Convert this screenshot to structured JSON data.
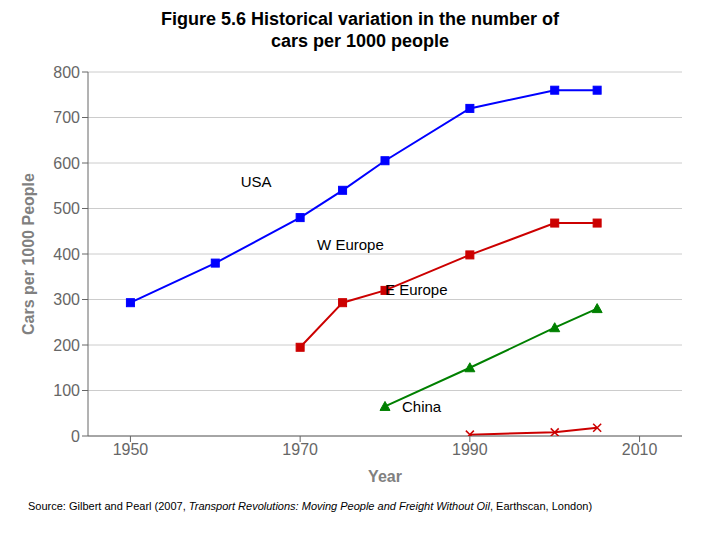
{
  "chart_data": {
    "type": "line",
    "title": "Figure 5.6 Historical variation in the number of\ncars per 1000 people",
    "x_label": "Year",
    "y_label": "Cars per 1000 People",
    "xlim": [
      1945,
      2015
    ],
    "ylim": [
      0,
      800
    ],
    "xticks": [
      1950,
      1970,
      1990,
      2010
    ],
    "yticks": [
      0,
      100,
      200,
      300,
      400,
      500,
      600,
      700,
      800
    ],
    "grid": true,
    "series": [
      {
        "name": "USA",
        "color": "#0000FF",
        "marker": "square",
        "x": [
          1950,
          1960,
          1970,
          1975,
          1980,
          1990,
          2000,
          2005
        ],
        "values": [
          293,
          380,
          480,
          540,
          605,
          720,
          760,
          760
        ]
      },
      {
        "name": "W Europe",
        "color": "#CC0000",
        "marker": "square",
        "x": [
          1970,
          1975,
          1980,
          1990,
          2000,
          2005
        ],
        "values": [
          195,
          293,
          320,
          398,
          468,
          468
        ]
      },
      {
        "name": "E Europe",
        "color": "#008000",
        "marker": "triangle",
        "x": [
          1980,
          1990,
          2000,
          2005
        ],
        "values": [
          65,
          150,
          238,
          280
        ]
      },
      {
        "name": "China",
        "color": "#CC0000",
        "marker": "x",
        "x": [
          1990,
          2000,
          2005
        ],
        "values": [
          3,
          8,
          18
        ]
      }
    ],
    "annotations": [
      {
        "text": "USA",
        "x": 1963,
        "y": 548
      },
      {
        "text": "W Europe",
        "x": 1972,
        "y": 408
      },
      {
        "text": "E Europe",
        "x": 1980,
        "y": 310
      },
      {
        "text": "China",
        "x": 1982,
        "y": 52
      }
    ],
    "source": [
      "Source: Gilbert and Pearl (2007, ",
      "Transport Revolutions: Moving People and Freight Without Oil",
      ", Earthscan, London)"
    ]
  }
}
